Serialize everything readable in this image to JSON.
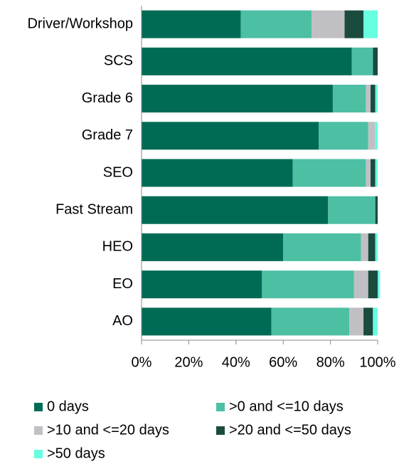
{
  "chart_data": {
    "type": "stacked-bar-horizontal",
    "categories": [
      "Driver/Workshop",
      "SCS",
      "Grade 6",
      "Grade 7",
      "SEO",
      "Fast Stream",
      "HEO",
      "EO",
      "AO"
    ],
    "series": [
      {
        "name": "0 days",
        "color": "#006b54",
        "values": [
          42,
          89,
          81,
          75,
          64,
          79,
          60,
          51,
          55
        ]
      },
      {
        "name": ">0 and <=10 days",
        "color": "#4dbfa3",
        "values": [
          30,
          9,
          14,
          21,
          31,
          20,
          33,
          39,
          33
        ]
      },
      {
        "name": ">10 and <=20 days",
        "color": "#c0c0c4",
        "values": [
          14,
          0,
          2,
          3,
          2,
          0,
          3,
          6,
          6
        ]
      },
      {
        "name": ">20 and <=50 days",
        "color": "#1b4a3e",
        "values": [
          8,
          2,
          2,
          0,
          2,
          1,
          3,
          4,
          4
        ]
      },
      {
        "name": ">50 days",
        "color": "#66ffe0",
        "values": [
          6,
          0,
          1,
          1,
          1,
          0,
          1,
          1,
          2
        ]
      }
    ],
    "xlim": [
      0,
      100
    ],
    "xticks": [
      {
        "value": 0,
        "label": "0%"
      },
      {
        "value": 20,
        "label": "20%"
      },
      {
        "value": 40,
        "label": "40%"
      },
      {
        "value": 60,
        "label": "60%"
      },
      {
        "value": 80,
        "label": "80%"
      },
      {
        "value": 100,
        "label": "100%"
      }
    ],
    "legend": "bottom"
  }
}
